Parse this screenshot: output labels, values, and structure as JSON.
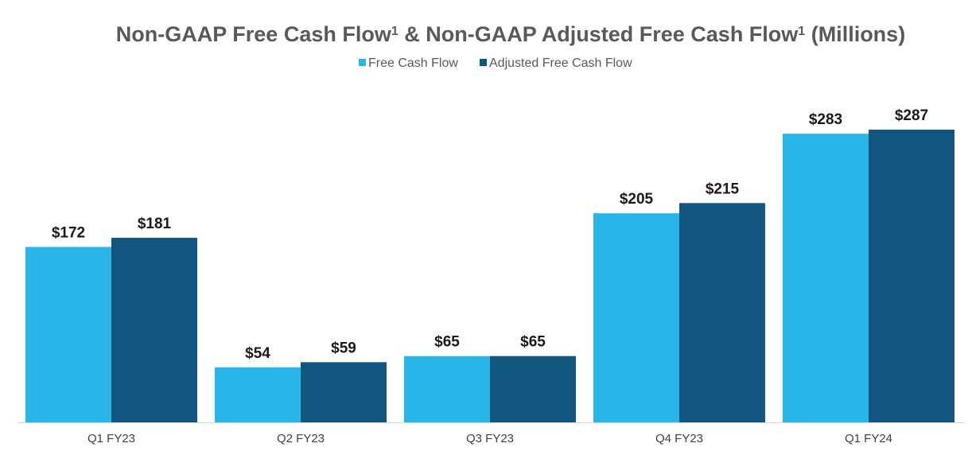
{
  "chart_data": {
    "type": "bar",
    "title": {
      "part1": "Non-GAAP Free Cash Flow",
      "sup1": "1",
      "part2": " & Non-GAAP Adjusted Free Cash Flow",
      "sup2": "1",
      "part3": " (Millions)"
    },
    "xlabel": "",
    "ylabel": "",
    "ylim": [
      0,
      287
    ],
    "grid": false,
    "legend_position": "top-center",
    "categories": [
      "Q1 FY23",
      "Q2 FY23",
      "Q3 FY23",
      "Q4 FY23",
      "Q1 FY24"
    ],
    "series": [
      {
        "name": "Free Cash Flow",
        "color": "#29B5E8",
        "values": [
          172,
          54,
          65,
          205,
          283
        ],
        "labels": [
          "$172",
          "$54",
          "$65",
          "$205",
          "$283"
        ]
      },
      {
        "name": "Adjusted Free Cash Flow",
        "color": "#11567F",
        "values": [
          181,
          59,
          65,
          215,
          287
        ],
        "labels": [
          "$181",
          "$59",
          "$65",
          "$215",
          "$287"
        ]
      }
    ],
    "axis_color": "#d9d9d9"
  }
}
